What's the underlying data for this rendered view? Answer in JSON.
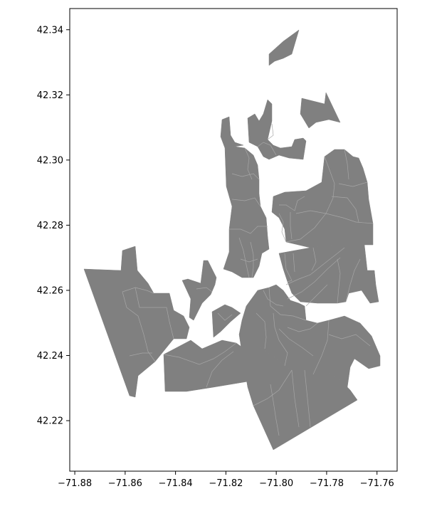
{
  "chart_data": {
    "type": "map",
    "title": "",
    "xlabel": "",
    "ylabel": "",
    "xlim": [
      -71.882,
      -71.752
    ],
    "ylim": [
      42.2045,
      42.3465
    ],
    "x_ticks": [
      "−71.88",
      "−71.86",
      "−71.84",
      "−71.82",
      "−71.80",
      "−71.78",
      "−71.76"
    ],
    "y_ticks": [
      "42.34",
      "42.32",
      "42.30",
      "42.28",
      "42.26",
      "42.24",
      "42.22"
    ],
    "grid": false,
    "fill_color": "#808080",
    "boundary_color": "#a6a6a6",
    "axis_color": "#000000"
  }
}
